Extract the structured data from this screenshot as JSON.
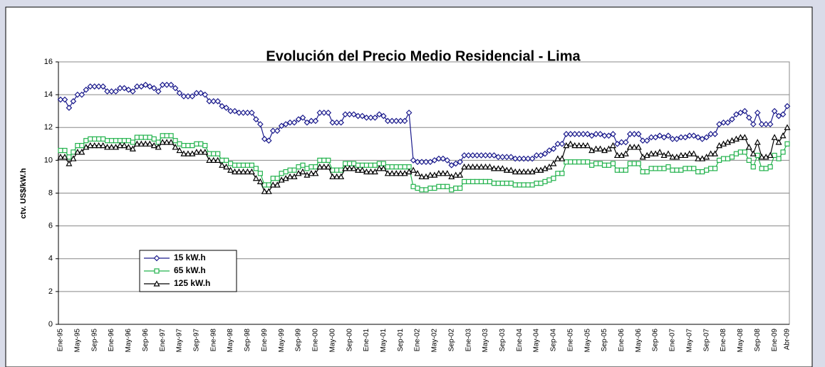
{
  "chart_data": {
    "type": "line",
    "title": "Evolución del Precio Medio Residencial - Lima",
    "y_label": "ctv. US$/kW.h",
    "categories": [
      "Ene-95",
      null,
      null,
      null,
      "May-95",
      null,
      null,
      null,
      "Sep-95",
      null,
      null,
      null,
      "Ene-96",
      null,
      null,
      null,
      "May-96",
      null,
      null,
      null,
      "Sep-96",
      null,
      null,
      null,
      "Ene-97",
      null,
      null,
      null,
      "May-97",
      null,
      null,
      null,
      "Sep-97",
      null,
      null,
      null,
      "Ene-98",
      null,
      null,
      null,
      "May-98",
      null,
      null,
      null,
      "Sep-98",
      null,
      null,
      null,
      "Ene-99",
      null,
      null,
      null,
      "May-99",
      null,
      null,
      null,
      "Sep-99",
      null,
      null,
      null,
      "Ene-00",
      null,
      null,
      null,
      "May-00",
      null,
      null,
      null,
      "Sep-00",
      null,
      null,
      null,
      "Ene-01",
      null,
      null,
      null,
      "May-01",
      null,
      null,
      null,
      "Sep-01",
      null,
      null,
      null,
      "Ene-02",
      null,
      null,
      null,
      "May-02",
      null,
      null,
      null,
      "Sep-02",
      null,
      null,
      null,
      "Ene-03",
      null,
      null,
      null,
      "May-03",
      null,
      null,
      null,
      "Sep-03",
      null,
      null,
      null,
      "Ene-04",
      null,
      null,
      null,
      "May-04",
      null,
      null,
      null,
      "Sep-04",
      null,
      null,
      null,
      "Ene-05",
      null,
      null,
      null,
      "May-05",
      null,
      null,
      null,
      "Sep-05",
      null,
      null,
      null,
      "Ene-06",
      null,
      null,
      null,
      "May-06",
      null,
      null,
      null,
      "Sep-06",
      null,
      null,
      null,
      "Ene-07",
      null,
      null,
      null,
      "May-07",
      null,
      null,
      null,
      "Sep-07",
      null,
      null,
      null,
      "Ene-08",
      null,
      null,
      null,
      "May-08",
      null,
      null,
      null,
      "Sep-08",
      null,
      null,
      null,
      "Ene-09",
      null,
      null,
      "Abr-09"
    ],
    "series": [
      {
        "name": "15 kW.h",
        "color": "#1a1a8c",
        "marker": "diamond",
        "values": [
          13.7,
          13.7,
          13.2,
          13.6,
          14.0,
          14.0,
          14.3,
          14.5,
          14.5,
          14.5,
          14.5,
          14.2,
          14.2,
          14.2,
          14.4,
          14.4,
          14.3,
          14.2,
          14.5,
          14.5,
          14.6,
          14.5,
          14.4,
          14.2,
          14.6,
          14.6,
          14.6,
          14.4,
          14.1,
          13.9,
          13.9,
          13.9,
          14.1,
          14.1,
          14.0,
          13.6,
          13.6,
          13.6,
          13.3,
          13.2,
          13.0,
          13.0,
          12.9,
          12.9,
          12.9,
          12.9,
          12.5,
          12.2,
          11.3,
          11.2,
          11.8,
          11.8,
          12.1,
          12.2,
          12.3,
          12.3,
          12.5,
          12.6,
          12.3,
          12.4,
          12.4,
          12.9,
          12.9,
          12.9,
          12.3,
          12.3,
          12.3,
          12.8,
          12.8,
          12.8,
          12.7,
          12.7,
          12.6,
          12.6,
          12.6,
          12.8,
          12.7,
          12.4,
          12.4,
          12.4,
          12.4,
          12.4,
          12.9,
          10.0,
          9.9,
          9.9,
          9.9,
          9.9,
          10.0,
          10.1,
          10.1,
          10.0,
          9.7,
          9.8,
          9.9,
          10.3,
          10.3,
          10.3,
          10.3,
          10.3,
          10.3,
          10.3,
          10.3,
          10.2,
          10.2,
          10.2,
          10.2,
          10.1,
          10.1,
          10.1,
          10.1,
          10.1,
          10.3,
          10.3,
          10.4,
          10.6,
          10.7,
          11.0,
          11.0,
          11.6,
          11.6,
          11.6,
          11.6,
          11.6,
          11.6,
          11.5,
          11.6,
          11.6,
          11.5,
          11.5,
          11.6,
          11.0,
          11.1,
          11.1,
          11.6,
          11.6,
          11.6,
          11.2,
          11.2,
          11.4,
          11.4,
          11.5,
          11.4,
          11.5,
          11.3,
          11.3,
          11.4,
          11.4,
          11.5,
          11.5,
          11.4,
          11.3,
          11.4,
          11.6,
          11.6,
          12.2,
          12.3,
          12.3,
          12.5,
          12.8,
          12.9,
          13.0,
          12.6,
          12.2,
          12.9,
          12.2,
          12.2,
          12.2,
          13.0,
          12.7,
          12.8,
          13.3
        ]
      },
      {
        "name": "65 kW.h",
        "color": "#22b24c",
        "marker": "square",
        "values": [
          10.6,
          10.6,
          10.2,
          10.5,
          10.9,
          10.9,
          11.2,
          11.3,
          11.3,
          11.3,
          11.3,
          11.2,
          11.2,
          11.2,
          11.2,
          11.2,
          11.2,
          11.1,
          11.4,
          11.4,
          11.4,
          11.4,
          11.3,
          11.1,
          11.5,
          11.5,
          11.5,
          11.2,
          11.0,
          10.9,
          10.9,
          10.9,
          11.0,
          11.0,
          10.9,
          10.4,
          10.4,
          10.4,
          10.0,
          10.0,
          9.8,
          9.7,
          9.7,
          9.7,
          9.7,
          9.7,
          9.5,
          9.2,
          8.5,
          8.5,
          8.9,
          8.9,
          9.2,
          9.3,
          9.4,
          9.4,
          9.6,
          9.7,
          9.5,
          9.6,
          9.6,
          10.0,
          10.0,
          10.0,
          9.4,
          9.4,
          9.4,
          9.8,
          9.8,
          9.8,
          9.7,
          9.7,
          9.7,
          9.7,
          9.7,
          9.8,
          9.8,
          9.6,
          9.6,
          9.6,
          9.6,
          9.6,
          9.6,
          8.4,
          8.3,
          8.2,
          8.2,
          8.3,
          8.3,
          8.4,
          8.4,
          8.4,
          8.2,
          8.3,
          8.3,
          8.7,
          8.7,
          8.7,
          8.7,
          8.7,
          8.7,
          8.7,
          8.6,
          8.6,
          8.6,
          8.6,
          8.6,
          8.5,
          8.5,
          8.5,
          8.5,
          8.5,
          8.6,
          8.6,
          8.7,
          8.8,
          8.9,
          9.2,
          9.2,
          9.9,
          9.9,
          9.9,
          9.9,
          9.9,
          9.9,
          9.7,
          9.8,
          9.8,
          9.7,
          9.7,
          9.8,
          9.4,
          9.4,
          9.4,
          9.8,
          9.8,
          9.8,
          9.3,
          9.3,
          9.5,
          9.5,
          9.5,
          9.5,
          9.6,
          9.4,
          9.4,
          9.4,
          9.5,
          9.5,
          9.5,
          9.3,
          9.3,
          9.4,
          9.5,
          9.5,
          10.0,
          10.1,
          10.1,
          10.2,
          10.4,
          10.5,
          10.5,
          10.0,
          9.6,
          10.3,
          9.5,
          9.5,
          9.6,
          10.3,
          10.1,
          10.5,
          11.0
        ]
      },
      {
        "name": "125 kW.h",
        "color": "#000000",
        "marker": "triangle",
        "values": [
          10.2,
          10.2,
          9.8,
          10.1,
          10.5,
          10.5,
          10.8,
          10.9,
          10.9,
          10.9,
          10.9,
          10.8,
          10.8,
          10.8,
          10.9,
          10.9,
          10.8,
          10.7,
          11.0,
          11.0,
          11.0,
          11.0,
          10.9,
          10.8,
          11.1,
          11.1,
          11.1,
          10.8,
          10.6,
          10.4,
          10.4,
          10.4,
          10.5,
          10.5,
          10.5,
          10.0,
          10.0,
          10.0,
          9.7,
          9.6,
          9.4,
          9.3,
          9.3,
          9.3,
          9.3,
          9.3,
          8.9,
          8.7,
          8.1,
          8.1,
          8.5,
          8.5,
          8.8,
          8.9,
          9.0,
          9.0,
          9.2,
          9.3,
          9.1,
          9.2,
          9.2,
          9.6,
          9.6,
          9.6,
          9.0,
          9.0,
          9.0,
          9.5,
          9.5,
          9.5,
          9.4,
          9.4,
          9.3,
          9.3,
          9.3,
          9.5,
          9.5,
          9.2,
          9.2,
          9.2,
          9.2,
          9.2,
          9.3,
          9.4,
          9.2,
          9.0,
          9.0,
          9.1,
          9.1,
          9.2,
          9.2,
          9.2,
          9.0,
          9.1,
          9.1,
          9.6,
          9.6,
          9.6,
          9.6,
          9.6,
          9.6,
          9.6,
          9.5,
          9.5,
          9.5,
          9.4,
          9.4,
          9.3,
          9.3,
          9.3,
          9.3,
          9.3,
          9.4,
          9.4,
          9.5,
          9.6,
          9.8,
          10.1,
          10.1,
          10.9,
          11.0,
          10.9,
          10.9,
          10.9,
          10.9,
          10.6,
          10.7,
          10.7,
          10.6,
          10.7,
          10.9,
          10.3,
          10.3,
          10.4,
          10.8,
          10.8,
          10.8,
          10.2,
          10.3,
          10.4,
          10.4,
          10.5,
          10.3,
          10.4,
          10.2,
          10.2,
          10.3,
          10.3,
          10.4,
          10.4,
          10.1,
          10.1,
          10.2,
          10.4,
          10.4,
          10.9,
          11.0,
          11.1,
          11.2,
          11.3,
          11.4,
          11.4,
          10.8,
          10.4,
          11.1,
          10.2,
          10.2,
          10.3,
          11.4,
          11.1,
          11.5,
          12.0
        ]
      }
    ],
    "ylim": [
      0,
      16
    ],
    "yticks": [
      0,
      2,
      4,
      6,
      8,
      10,
      12,
      14,
      16
    ],
    "grid": true,
    "legend": "lower-left"
  }
}
